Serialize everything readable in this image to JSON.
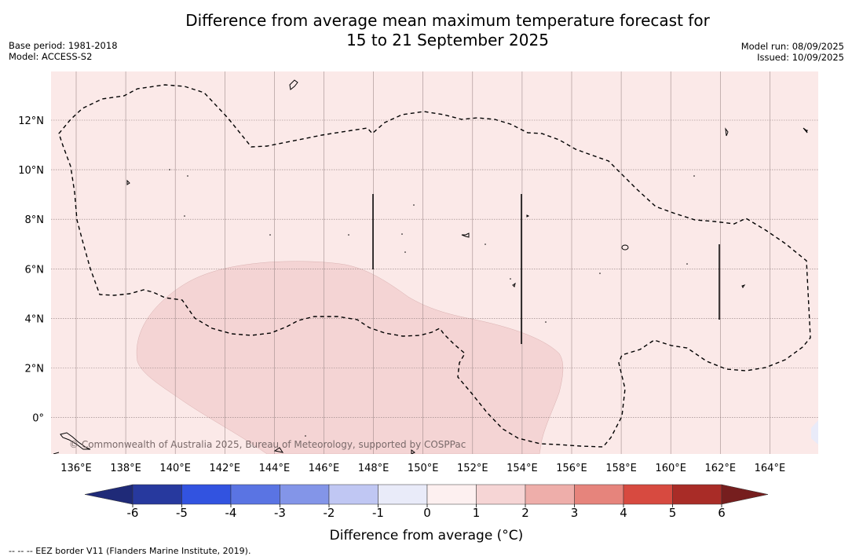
{
  "header": {
    "title_line1": "Difference from average mean maximum temperature forecast for",
    "title_line2": "15 to 21 September 2025",
    "base_period": "Base period: 1981-2018",
    "model": "Model: ACCESS-S2",
    "model_run": "Model run: 08/09/2025",
    "issued": "Issued: 10/09/2025"
  },
  "map": {
    "lon_labels": [
      "136°E",
      "138°E",
      "140°E",
      "142°E",
      "144°E",
      "146°E",
      "148°E",
      "150°E",
      "152°E",
      "154°E",
      "156°E",
      "158°E",
      "160°E",
      "162°E",
      "164°E"
    ],
    "lat_labels": [
      "12°N",
      "10°N",
      "8°N",
      "6°N",
      "4°N",
      "2°N",
      "0°"
    ],
    "background_color": "#fbe9e8",
    "anomaly_patch_color": "#f4d4d4",
    "copyright": "© Commonwealth of Australia 2025, Bureau of Meteorology, supported by COSPPac"
  },
  "colorbar": {
    "ticks": [
      "-6",
      "-5",
      "-4",
      "-3",
      "-2",
      "-1",
      "0",
      "1",
      "2",
      "3",
      "4",
      "5",
      "6"
    ],
    "colors": [
      "#27399e",
      "#3253e0",
      "#5a74e3",
      "#8395e8",
      "#c0c7f3",
      "#e9ebf9",
      "#fdf0f0",
      "#f6d5d5",
      "#eeaeaa",
      "#e6847c",
      "#d74a40",
      "#a92c27"
    ],
    "under_color": "#1f2a78",
    "over_color": "#761e1e",
    "label": "Difference from average (°C)"
  },
  "footnote": "--  --  -- EEZ border V11 (Flanders Marine Institute, 2019)."
}
